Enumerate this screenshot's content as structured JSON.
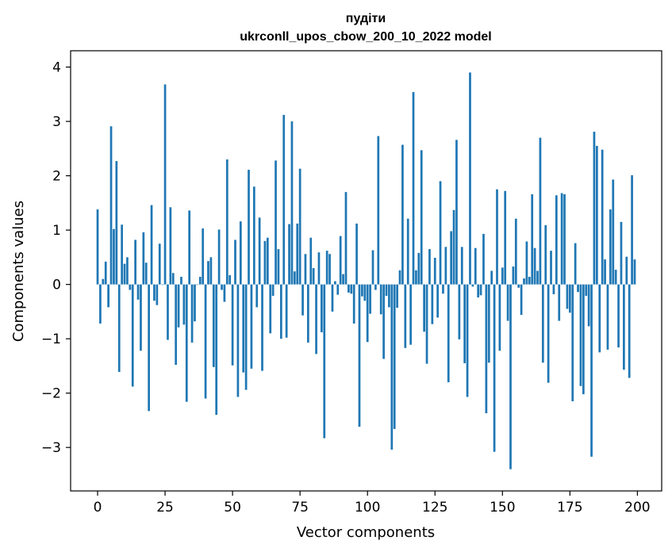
{
  "chart_data": {
    "type": "bar",
    "title_line1": "пудіти",
    "title_line2": "ukrconll_upos_cbow_200_10_2022 model",
    "xlabel": "Vector components",
    "ylabel": "Components values",
    "xlim": [
      -10,
      209
    ],
    "ylim": [
      -3.8,
      4.3
    ],
    "xticks": [
      0,
      25,
      50,
      75,
      100,
      125,
      150,
      175,
      200
    ],
    "yticks": [
      -3,
      -2,
      -1,
      0,
      1,
      2,
      3,
      4
    ],
    "ytick_labels": [
      "−3",
      "−2",
      "−1",
      "0",
      "1",
      "2",
      "3",
      "4"
    ],
    "bar_color": "#1f77b4",
    "grid": false,
    "values": [
      1.38,
      -0.72,
      0.1,
      0.42,
      -0.42,
      2.91,
      1.02,
      2.27,
      -1.61,
      1.1,
      0.38,
      0.5,
      -0.1,
      -1.88,
      0.82,
      -0.28,
      -1.22,
      0.96,
      0.4,
      -2.33,
      1.46,
      -0.3,
      -0.38,
      0.75,
      0.0,
      3.68,
      -1.02,
      1.42,
      0.21,
      -1.48,
      -0.79,
      0.14,
      -0.74,
      -2.16,
      1.36,
      -1.07,
      -0.68,
      0.0,
      0.14,
      1.03,
      -2.1,
      0.43,
      0.5,
      -1.52,
      -2.4,
      1.01,
      -0.1,
      -0.32,
      2.3,
      0.17,
      -1.49,
      0.82,
      -2.07,
      1.16,
      -1.62,
      -1.94,
      2.11,
      -1.55,
      1.8,
      -0.42,
      1.23,
      -1.59,
      0.8,
      0.86,
      -0.9,
      -0.21,
      2.28,
      0.65,
      -1.0,
      3.12,
      -0.98,
      1.11,
      3.0,
      0.24,
      1.12,
      2.13,
      -0.57,
      0.56,
      -1.07,
      0.86,
      0.3,
      -1.28,
      0.59,
      -0.88,
      -2.83,
      0.62,
      0.56,
      -0.5,
      0.06,
      -0.19,
      0.89,
      0.19,
      1.7,
      -0.15,
      -0.17,
      -0.72,
      1.12,
      -2.62,
      -0.22,
      -0.3,
      -1.06,
      -0.54,
      0.63,
      -0.1,
      2.73,
      -0.55,
      -1.37,
      -0.21,
      -0.42,
      -3.04,
      -2.66,
      -0.43,
      0.26,
      2.57,
      -1.17,
      1.21,
      -1.11,
      3.54,
      0.26,
      0.58,
      2.47,
      -0.87,
      -1.46,
      0.65,
      -0.73,
      0.49,
      -0.61,
      1.9,
      -0.17,
      0.69,
      -1.8,
      0.98,
      1.37,
      2.66,
      -1.01,
      0.69,
      -1.45,
      -2.07,
      3.9,
      -0.04,
      0.67,
      -0.24,
      -0.2,
      0.93,
      -2.37,
      -1.44,
      0.25,
      -3.08,
      1.75,
      -1.22,
      0.31,
      1.72,
      -0.67,
      -3.4,
      0.33,
      1.21,
      -0.06,
      -0.56,
      0.11,
      0.79,
      0.14,
      1.66,
      0.67,
      0.25,
      2.7,
      -1.44,
      1.09,
      -1.81,
      0.62,
      -0.18,
      1.64,
      -0.67,
      1.68,
      1.66,
      -0.45,
      -0.52,
      -2.15,
      0.76,
      -0.14,
      -1.87,
      -2.02,
      -0.21,
      -0.77,
      -3.17,
      2.81,
      2.55,
      -1.25,
      2.48,
      0.46,
      -1.2,
      1.38,
      1.93,
      0.27,
      -1.16,
      1.15,
      -1.57,
      0.51,
      -1.72,
      2.01,
      0.46
    ]
  }
}
